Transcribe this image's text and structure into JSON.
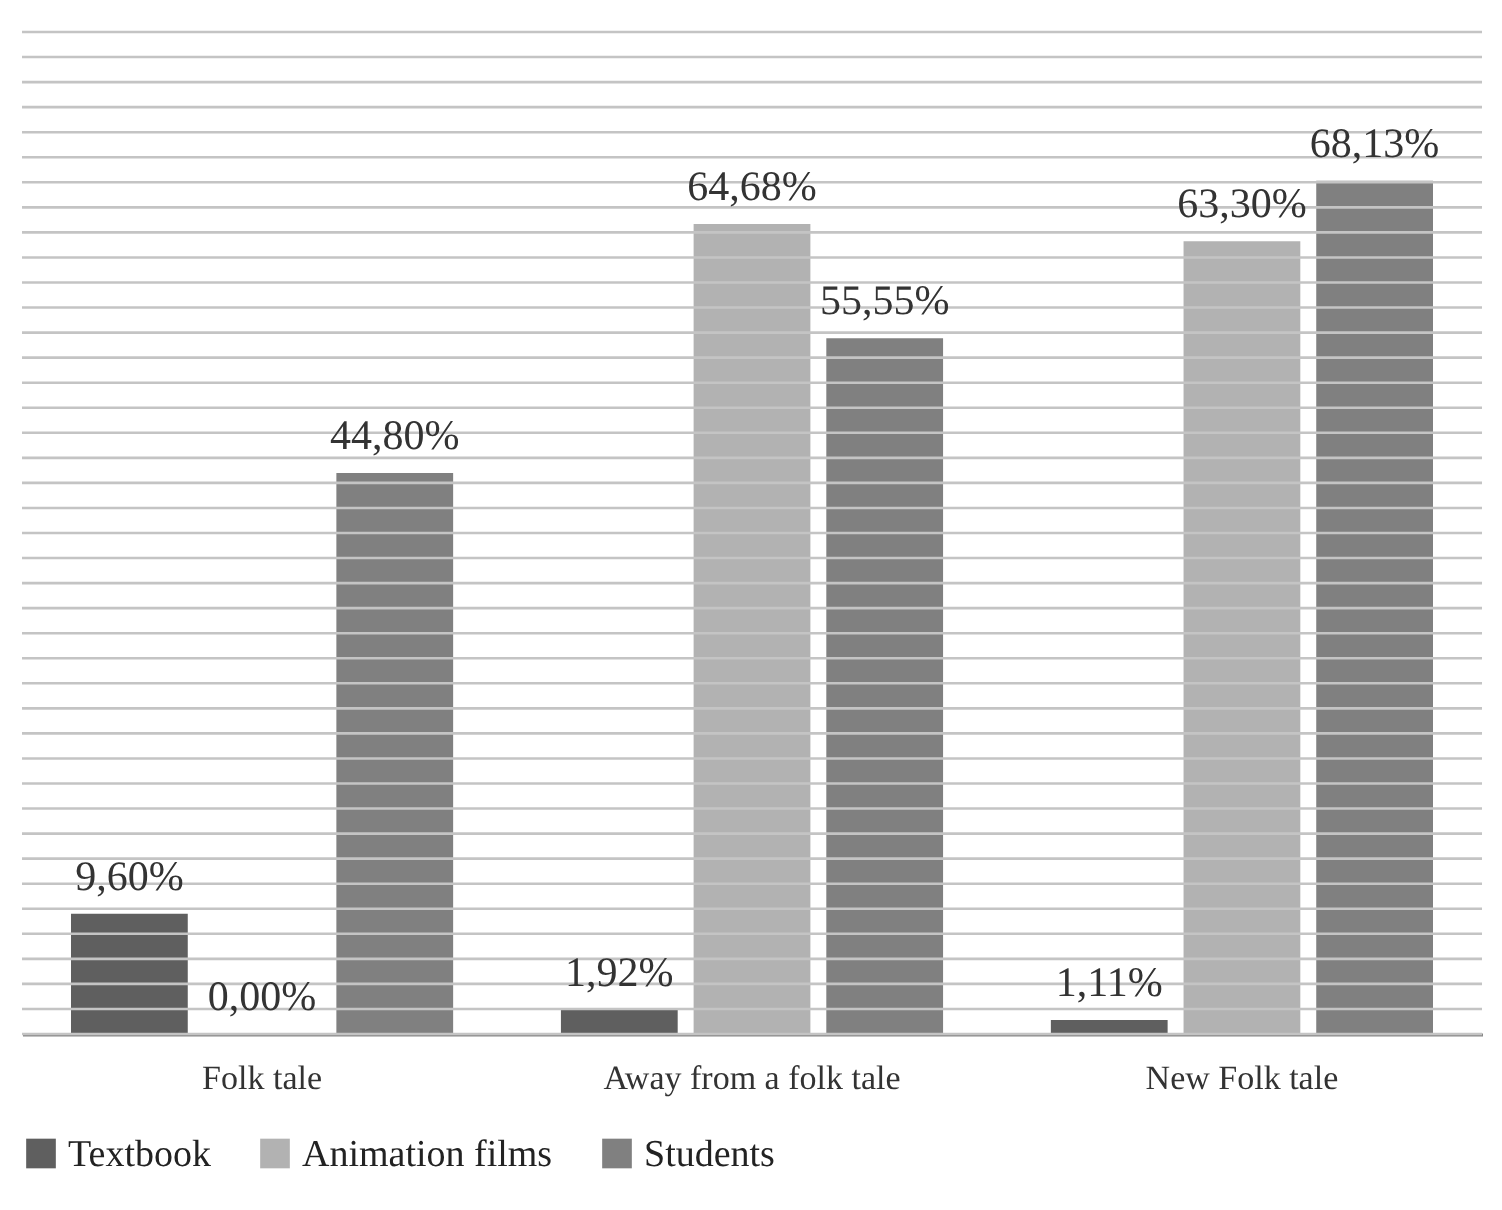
{
  "chart_data": {
    "type": "bar",
    "categories": [
      "Folk tale",
      "Away from a folk tale",
      "New Folk tale"
    ],
    "series": [
      {
        "name": "Textbook",
        "color": "#5f5f5f",
        "values": [
          9.6,
          1.92,
          1.11
        ],
        "value_labels": [
          "9,60%",
          "1,92%",
          "1,11%"
        ]
      },
      {
        "name": "Animation films",
        "color": "#b2b2b2",
        "values": [
          0,
          64.68,
          63.3
        ],
        "value_labels": [
          "0,00%",
          "64,68%",
          "63,30%"
        ]
      },
      {
        "name": "Students",
        "color": "#808080",
        "values": [
          44.8,
          55.55,
          68.13
        ],
        "value_labels": [
          "44,80%",
          "55,55%",
          "68,13%"
        ]
      }
    ],
    "ylim": [
      0,
      80
    ],
    "yticks": [
      {
        "value": 0,
        "label": null
      },
      {
        "value": 2,
        "label": null
      },
      {
        "value": 4,
        "label": null
      },
      {
        "value": 6,
        "label": null
      },
      {
        "value": 8,
        "label": null
      },
      {
        "value": 10,
        "label": null
      },
      {
        "value": 12,
        "label": null
      },
      {
        "value": 14,
        "label": null
      },
      {
        "value": 16,
        "label": null
      },
      {
        "value": 18,
        "label": null
      },
      {
        "value": 20,
        "label": null
      },
      {
        "value": 22,
        "label": null
      },
      {
        "value": 24,
        "label": null
      },
      {
        "value": 26,
        "label": null
      },
      {
        "value": 28,
        "label": null
      },
      {
        "value": 30,
        "label": null
      },
      {
        "value": 32,
        "label": null
      },
      {
        "value": 34,
        "label": null
      },
      {
        "value": 36,
        "label": null
      },
      {
        "value": 38,
        "label": null
      },
      {
        "value": 40,
        "label": null
      },
      {
        "value": 42,
        "label": null
      },
      {
        "value": 44,
        "label": null
      },
      {
        "value": 46,
        "label": null
      },
      {
        "value": 48,
        "label": null
      },
      {
        "value": 50,
        "label": null
      },
      {
        "value": 52,
        "label": null
      },
      {
        "value": 54,
        "label": null
      },
      {
        "value": 56,
        "label": null
      },
      {
        "value": 58,
        "label": null
      },
      {
        "value": 60,
        "label": null
      },
      {
        "value": 62,
        "label": null
      },
      {
        "value": 64,
        "label": null
      },
      {
        "value": 66,
        "label": null
      },
      {
        "value": 68,
        "label": null
      },
      {
        "value": 70,
        "label": null
      },
      {
        "value": 72,
        "label": null
      },
      {
        "value": 74,
        "label": null
      },
      {
        "value": 76,
        "label": null
      },
      {
        "value": 78,
        "label": null
      },
      {
        "value": 80,
        "label": null
      }
    ],
    "grid": "y",
    "legend": "bottom",
    "tick_labels": "x"
  }
}
